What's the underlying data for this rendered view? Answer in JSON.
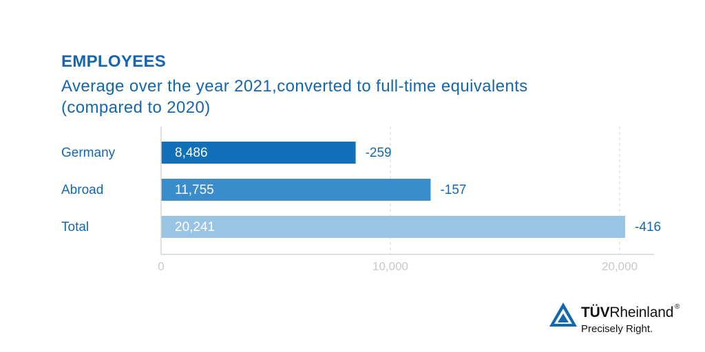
{
  "heading": {
    "title": "EMPLOYEES",
    "subtitle_line1": "Average over the year 2021,converted to full-time equivalents",
    "subtitle_line2": "(compared to 2020)"
  },
  "chart_data": {
    "type": "bar",
    "orientation": "horizontal",
    "title": "EMPLOYEES",
    "subtitle": "Average over the year 2021,converted to full-time equivalents (compared to 2020)",
    "categories": [
      "Germany",
      "Abroad",
      "Total"
    ],
    "values": [
      8486,
      11755,
      20241
    ],
    "value_labels": [
      "8,486",
      "11,755",
      "20,241"
    ],
    "change_labels": [
      "-259",
      "-157",
      "-416"
    ],
    "bar_colors": [
      "#1170b8",
      "#3a8ccb",
      "#9ac4e4"
    ],
    "label_colors": [
      "#ffffff",
      "#ffffff",
      "#ffffff"
    ],
    "xlim": [
      0,
      21500
    ],
    "xticks": [
      0,
      10000,
      20000
    ],
    "xtick_labels": [
      "0",
      "10,000",
      "20,000"
    ],
    "xlabel": "",
    "ylabel": "",
    "grid": true,
    "legend": "none"
  },
  "logo": {
    "brand_bold": "TÜV",
    "brand_rest": "Rheinland",
    "registered": "®",
    "tagline": "Precisely Right."
  },
  "colors": {
    "brand_blue": "#1366b0",
    "text_blue": "#1366b0",
    "axis_label_gray": "#c8c8c8"
  }
}
